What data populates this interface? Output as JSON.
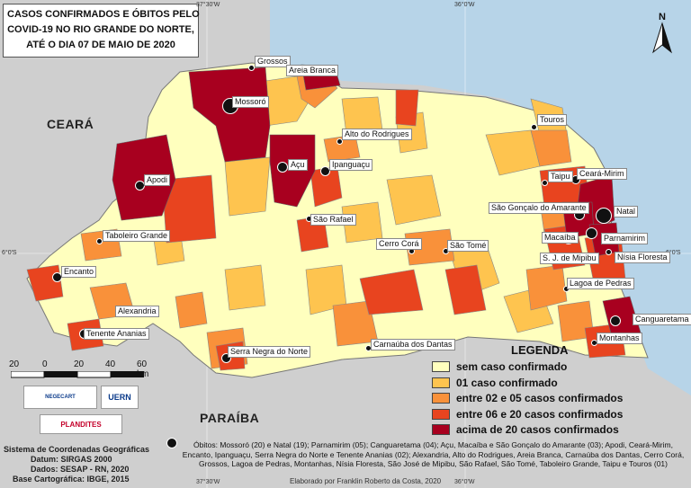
{
  "title": {
    "lines": [
      "CASOS CONFIRMADOS E ÓBITOS PELO",
      "COVID-19 NO RIO GRANDE DO NORTE,",
      "ATÉ O DIA 07 DE MAIO DE 2020"
    ]
  },
  "coordinates": {
    "top_left": "37°30'W",
    "top_right": "36°0'W",
    "bottom_left": "37°30'W",
    "bottom_right": "36°0'W",
    "left_lat": "6°0'S",
    "right_lat": "6°0'S"
  },
  "neighbor_states": {
    "ceara": "CEARÁ",
    "paraiba": "PARAÍBA"
  },
  "colors": {
    "sem_caso": "#ffffbe",
    "um_caso": "#fec44f",
    "dois_cinco": "#f9913a",
    "seis_vinte": "#e8441f",
    "acima_vinte": "#a8001f",
    "outside": "#cfcfcf",
    "sea": "#b7d4e8",
    "border": "#777777"
  },
  "cities": [
    {
      "name": "Grossos"
    },
    {
      "name": "Areia Branca"
    },
    {
      "name": "Mossoró"
    },
    {
      "name": "Alto do Rodrigues"
    },
    {
      "name": "Touros"
    },
    {
      "name": "Apodi"
    },
    {
      "name": "Açu"
    },
    {
      "name": "Ipanguaçu"
    },
    {
      "name": "Taipu"
    },
    {
      "name": "Ceará-Mirim"
    },
    {
      "name": "São Gonçalo do Amarante"
    },
    {
      "name": "Natal"
    },
    {
      "name": "São Rafael"
    },
    {
      "name": "Macaíba"
    },
    {
      "name": "Parnamirim"
    },
    {
      "name": "Taboleiro Grande"
    },
    {
      "name": "Cerro Corá"
    },
    {
      "name": "São Tomé"
    },
    {
      "name": "S. J. de Mipibu"
    },
    {
      "name": "Nísia Floresta"
    },
    {
      "name": "Encanto"
    },
    {
      "name": "Lagoa de Pedras"
    },
    {
      "name": "Alexandria"
    },
    {
      "name": "Canguaretama"
    },
    {
      "name": "Tenente Ananias"
    },
    {
      "name": "Montanhas"
    },
    {
      "name": "Carnaúba dos Dantas"
    },
    {
      "name": "Serra Negra do Norte"
    }
  ],
  "legend": {
    "title": "LEGENDA",
    "items": [
      {
        "label": "sem caso confirmado",
        "color": "#ffffbe"
      },
      {
        "label": "01 caso confirmado",
        "color": "#fec44f"
      },
      {
        "label": "entre 02 e 05 casos confirmados",
        "color": "#f9913a"
      },
      {
        "label": "entre 06 e 20 casos confirmados",
        "color": "#e8441f"
      },
      {
        "label": "acima de 20 casos confirmados",
        "color": "#a8001f"
      }
    ]
  },
  "scale": {
    "labels": [
      "20",
      "0",
      "20",
      "40",
      "60 km"
    ]
  },
  "north": "N",
  "logos": {
    "negecart": "NEGECART",
    "uern": "UERN",
    "plandites": "PLANDITES"
  },
  "info": {
    "line1": "Sistema de Coordenadas Geográficas",
    "line2": "Datum: SIRGAS 2000",
    "line3": "Dados: SESAP - RN, 2020",
    "line4": "Base Cartográfica: IBGE, 2015"
  },
  "obitos": "Óbitos: Mossoró (20) e Natal (19); Parnamirim (05); Canguaretama (04); Açu, Macaíba e São Gonçalo do Amarante (03); Apodi, Ceará-Mirim, Encanto, Ipanguaçu, Serra Negra do Norte e Tenente Ananias (02); Alexandria, Alto do Rodrigues, Areia Branca, Carnaúba dos Dantas, Cerro Corá, Grossos, Lagoa de Pedras, Montanhas, Nísia Floresta, São José de Mipibu, São Rafael, São Tomé, Taboleiro Grande, Taipu e Touros (01)",
  "credit": "Elaborado por Franklin Roberto da Costa, 2020"
}
